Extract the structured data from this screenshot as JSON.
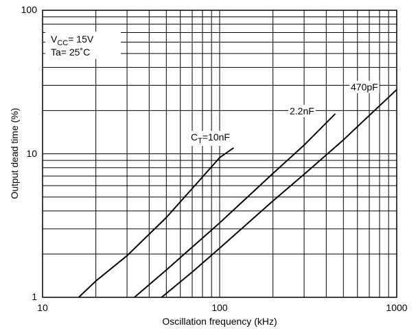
{
  "chart_data": {
    "type": "line",
    "title": "",
    "xlabel": "Oscillation  frequency (kHz)",
    "ylabel": "Output  dead  time  (%)",
    "x_scale": "log",
    "y_scale": "log",
    "xlim": [
      10,
      1000
    ],
    "ylim": [
      1,
      100
    ],
    "grid": true,
    "x_ticks": [
      "10",
      "100",
      "1000"
    ],
    "y_ticks": [
      "1",
      "10",
      "100"
    ],
    "conditions": {
      "vcc_prefix": "V",
      "vcc_sub": "CC",
      "vcc_value": "= 15V",
      "ta": "Ta= 25˚C"
    },
    "series": [
      {
        "label_prefix": "C",
        "label_sub": "T",
        "label_rest": "=10nF",
        "x": [
          16,
          20,
          30,
          50,
          75,
          100,
          120
        ],
        "y": [
          1.0,
          1.3,
          1.95,
          3.6,
          6.3,
          9.4,
          11.0
        ]
      },
      {
        "label_prefix": "2.2nF",
        "label_sub": "",
        "label_rest": "",
        "x": [
          33,
          50,
          100,
          200,
          300,
          450
        ],
        "y": [
          1.0,
          1.55,
          3.3,
          7.3,
          11.5,
          19.0
        ]
      },
      {
        "label_prefix": "470pF",
        "label_sub": "",
        "label_rest": "",
        "x": [
          47,
          70,
          100,
          200,
          300,
          500,
          1000
        ],
        "y": [
          1.0,
          1.5,
          2.2,
          4.7,
          7.2,
          12.5,
          28.0
        ]
      }
    ]
  }
}
